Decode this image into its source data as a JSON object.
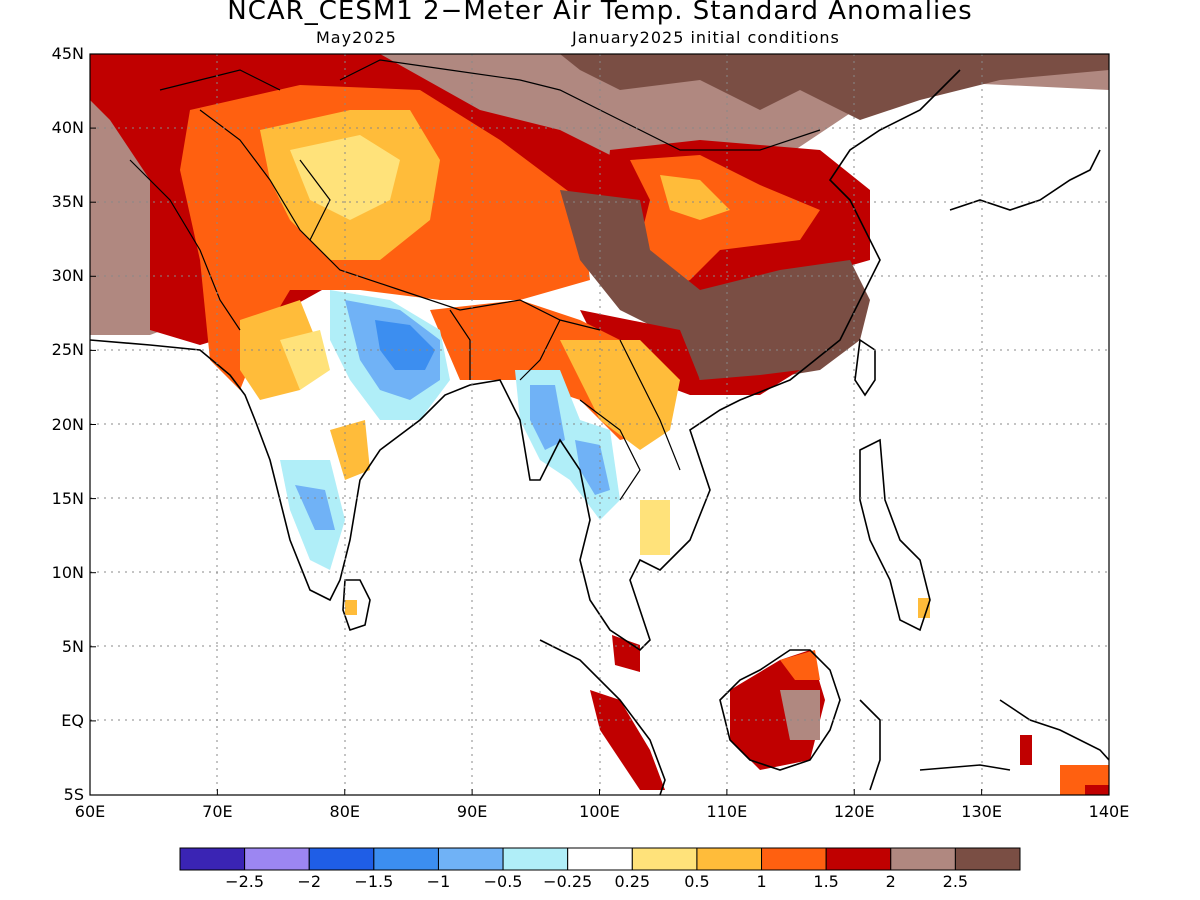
{
  "title": "NCAR_CESM1 2−Meter Air Temp. Standard Anomalies",
  "subtitle_left": "May2025",
  "subtitle_right": "January2025 initial conditions",
  "lat_labels": [
    "45N",
    "40N",
    "35N",
    "30N",
    "25N",
    "20N",
    "15N",
    "10N",
    "5N",
    "EQ",
    "5S"
  ],
  "lon_labels": [
    "60E",
    "70E",
    "80E",
    "90E",
    "100E",
    "110E",
    "120E",
    "130E",
    "140E"
  ],
  "colorbar": {
    "colors": [
      "#3a24b4",
      "#9c86f2",
      "#1f5ee6",
      "#3c8ef0",
      "#70b2f6",
      "#b0eef8",
      "#ffffff",
      "#ffe27a",
      "#ffbc3a",
      "#ff6010",
      "#c00000",
      "#b08880",
      "#7a4e44"
    ],
    "labels": [
      "−2.5",
      "−2",
      "−1.5",
      "−1",
      "−0.5",
      "−0.25",
      "0.25",
      "0.5",
      "1",
      "1.5",
      "2",
      "2.5"
    ]
  },
  "chart_data": {
    "type": "heatmap",
    "title": "NCAR_CESM1 2−Meter Air Temp. Standard Anomalies",
    "xlim": [
      60,
      140
    ],
    "ylim": [
      -5,
      45
    ],
    "x_ticks": [
      60,
      70,
      80,
      90,
      100,
      110,
      120,
      130,
      140
    ],
    "y_ticks": [
      -5,
      0,
      5,
      10,
      15,
      20,
      25,
      30,
      35,
      40,
      45
    ],
    "legend_levels": [
      -2.5,
      -2,
      -1.5,
      -1,
      -0.5,
      -0.25,
      0.25,
      0.5,
      1,
      1.5,
      2,
      2.5
    ],
    "anomaly_regions": [
      {
        "lon": [
          60,
          72
        ],
        "lat": [
          26,
          45
        ],
        "value": 2.5
      },
      {
        "lon": [
          66,
          80
        ],
        "lat": [
          26,
          43
        ],
        "value": 2.0
      },
      {
        "lon": [
          60,
          100
        ],
        "lat": [
          40,
          45
        ],
        "value": 2.0
      },
      {
        "lon": [
          75,
          100
        ],
        "lat": [
          28,
          41
        ],
        "value": 1.5
      },
      {
        "lon": [
          80,
          96
        ],
        "lat": [
          33,
          40
        ],
        "value": 1.0
      },
      {
        "lon": [
          73,
          80
        ],
        "lat": [
          22,
          32
        ],
        "value": 1.5
      },
      {
        "lon": [
          100,
          120
        ],
        "lat": [
          39,
          45
        ],
        "value": 2.5
      },
      {
        "lon": [
          102,
          120
        ],
        "lat": [
          30,
          38
        ],
        "value": 1.5
      },
      {
        "lon": [
          105,
          120
        ],
        "lat": [
          22,
          31
        ],
        "value": 2.5
      },
      {
        "lon": [
          80,
          87
        ],
        "lat": [
          21,
          28
        ],
        "value": -1.0
      },
      {
        "lon": [
          95,
          98
        ],
        "lat": [
          19,
          23
        ],
        "value": -0.5
      },
      {
        "lon": [
          96,
          100
        ],
        "lat": [
          14,
          19
        ],
        "value": -0.5
      },
      {
        "lon": [
          76,
          80
        ],
        "lat": [
          11,
          17
        ],
        "value": -0.5
      },
      {
        "lon": [
          70,
          80
        ],
        "lat": [
          8,
          22
        ],
        "value": 0.0
      },
      {
        "lon": [
          110,
          117
        ],
        "lat": [
          -4,
          5
        ],
        "value": 2.0
      },
      {
        "lon": [
          98,
          104
        ],
        "lat": [
          -4,
          2
        ],
        "value": 2.0
      },
      {
        "lon": [
          136,
          140
        ],
        "lat": [
          -5,
          -3
        ],
        "value": 1.5
      }
    ]
  }
}
